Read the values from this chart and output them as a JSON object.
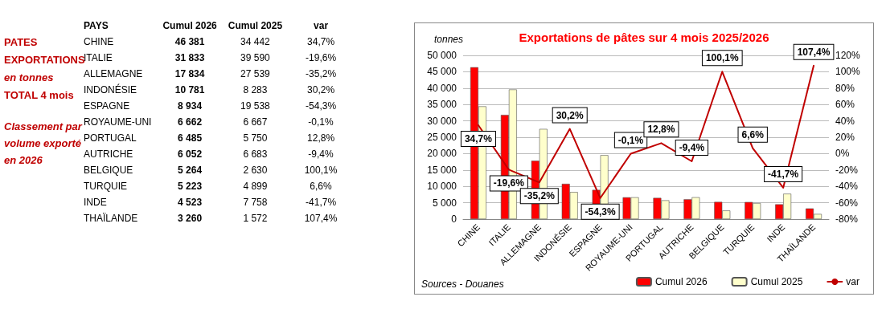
{
  "chart_data": [
    {
      "type": "other",
      "annotations": [
        "PATES",
        "EXPORTATIONS",
        "en tonnes",
        "TOTAL 4  mois",
        "Classement par volume exporté en 2026",
        "PAYS",
        "Cumul 2026",
        "Cumul 2025",
        "var",
        "CHINE",
        "46 381",
        "34 442",
        "34,7%",
        "ITALIE",
        "31 833",
        "39 590",
        "-19,6%",
        "ALLEMAGNE",
        "17 834",
        "27 539",
        "-35,2%",
        "INDONÉSIE",
        "10 781",
        "8 283",
        "30,2%",
        "ESPAGNE",
        "8 934",
        "19 538",
        "-54,3%",
        "ROYAUME-UNI",
        "6 662",
        "6 667",
        "-0,1%",
        "PORTUGAL",
        "6 485",
        "5 750",
        "12,8%",
        "AUTRICHE",
        "6 052",
        "6 683",
        "-9,4%",
        "BELGIQUE",
        "5 264",
        "2 630",
        "100,1%",
        "TURQUIE",
        "5 223",
        "4 899",
        "6,6%",
        "INDE",
        "4 523",
        "7 758",
        "-41,7%",
        "THAÏLANDE",
        "3 260",
        "1 572",
        "107,4%"
      ]
    },
    {
      "type": "bar",
      "title": "Exportations de pâtes sur 4 mois 2025/2026",
      "ylabel": "tonnes",
      "categories": [
        "CHINE",
        "ITALIE",
        "ALLEMAGNE",
        "INDONÉSIE",
        "ESPAGNE",
        "ROYAUME-UNI",
        "PORTUGAL",
        "AUTRICHE",
        "BELGIQUE",
        "TURQUIE",
        "INDE",
        "THAÏLANDE"
      ],
      "series": [
        {
          "name": "Cumul 2026",
          "color": "#ff0000",
          "values": [
            46381,
            31833,
            17834,
            10781,
            8934,
            6662,
            6485,
            6052,
            5264,
            5223,
            4523,
            3260
          ]
        },
        {
          "name": "Cumul 2025",
          "color": "#ffffcc",
          "values": [
            34442,
            39590,
            27539,
            8283,
            19538,
            6667,
            5750,
            6683,
            2630,
            4899,
            7758,
            1572
          ]
        },
        {
          "name": "var",
          "type": "line",
          "axis": "y2",
          "color": "#c00000",
          "values": [
            34.7,
            -19.6,
            -35.2,
            30.2,
            -54.3,
            -0.1,
            12.8,
            -9.4,
            100.1,
            6.6,
            -41.7,
            107.4
          ],
          "value_labels": [
            "34,7%",
            "-19,6%",
            "-35,2%",
            "30,2%",
            "-54,3%",
            "-0,1%",
            "12,8%",
            "-9,4%",
            "100,1%",
            "6,6%",
            "-41,7%",
            "107,4%"
          ]
        }
      ],
      "ylim": [
        0,
        50000
      ],
      "yticks": [
        {
          "value": 0,
          "label": "0"
        },
        {
          "value": 5000,
          "label": "5 000"
        },
        {
          "value": 10000,
          "label": "10 000"
        },
        {
          "value": 15000,
          "label": "15 000"
        },
        {
          "value": 20000,
          "label": "20 000"
        },
        {
          "value": 25000,
          "label": "25 000"
        },
        {
          "value": 30000,
          "label": "30 000"
        },
        {
          "value": 35000,
          "label": "35 000"
        },
        {
          "value": 40000,
          "label": "40 000"
        },
        {
          "value": 45000,
          "label": "45 000"
        },
        {
          "value": 50000,
          "label": "50 000"
        }
      ],
      "y2lim": [
        -80,
        120
      ],
      "y2ticks": [
        {
          "value": -80,
          "label": "-80%"
        },
        {
          "value": -60,
          "label": "-60%"
        },
        {
          "value": -40,
          "label": "-40%"
        },
        {
          "value": -20,
          "label": "-20%"
        },
        {
          "value": 0,
          "label": "0%"
        },
        {
          "value": 20,
          "label": "20%"
        },
        {
          "value": 40,
          "label": "40%"
        },
        {
          "value": 60,
          "label": "60%"
        },
        {
          "value": 80,
          "label": "80%"
        },
        {
          "value": 100,
          "label": "100%"
        },
        {
          "value": 120,
          "label": "120%"
        }
      ],
      "grid": "y",
      "legend": "bottom right",
      "marker": "none",
      "line_style": "solid",
      "annotations": [
        "Sources - Douanes"
      ]
    }
  ]
}
